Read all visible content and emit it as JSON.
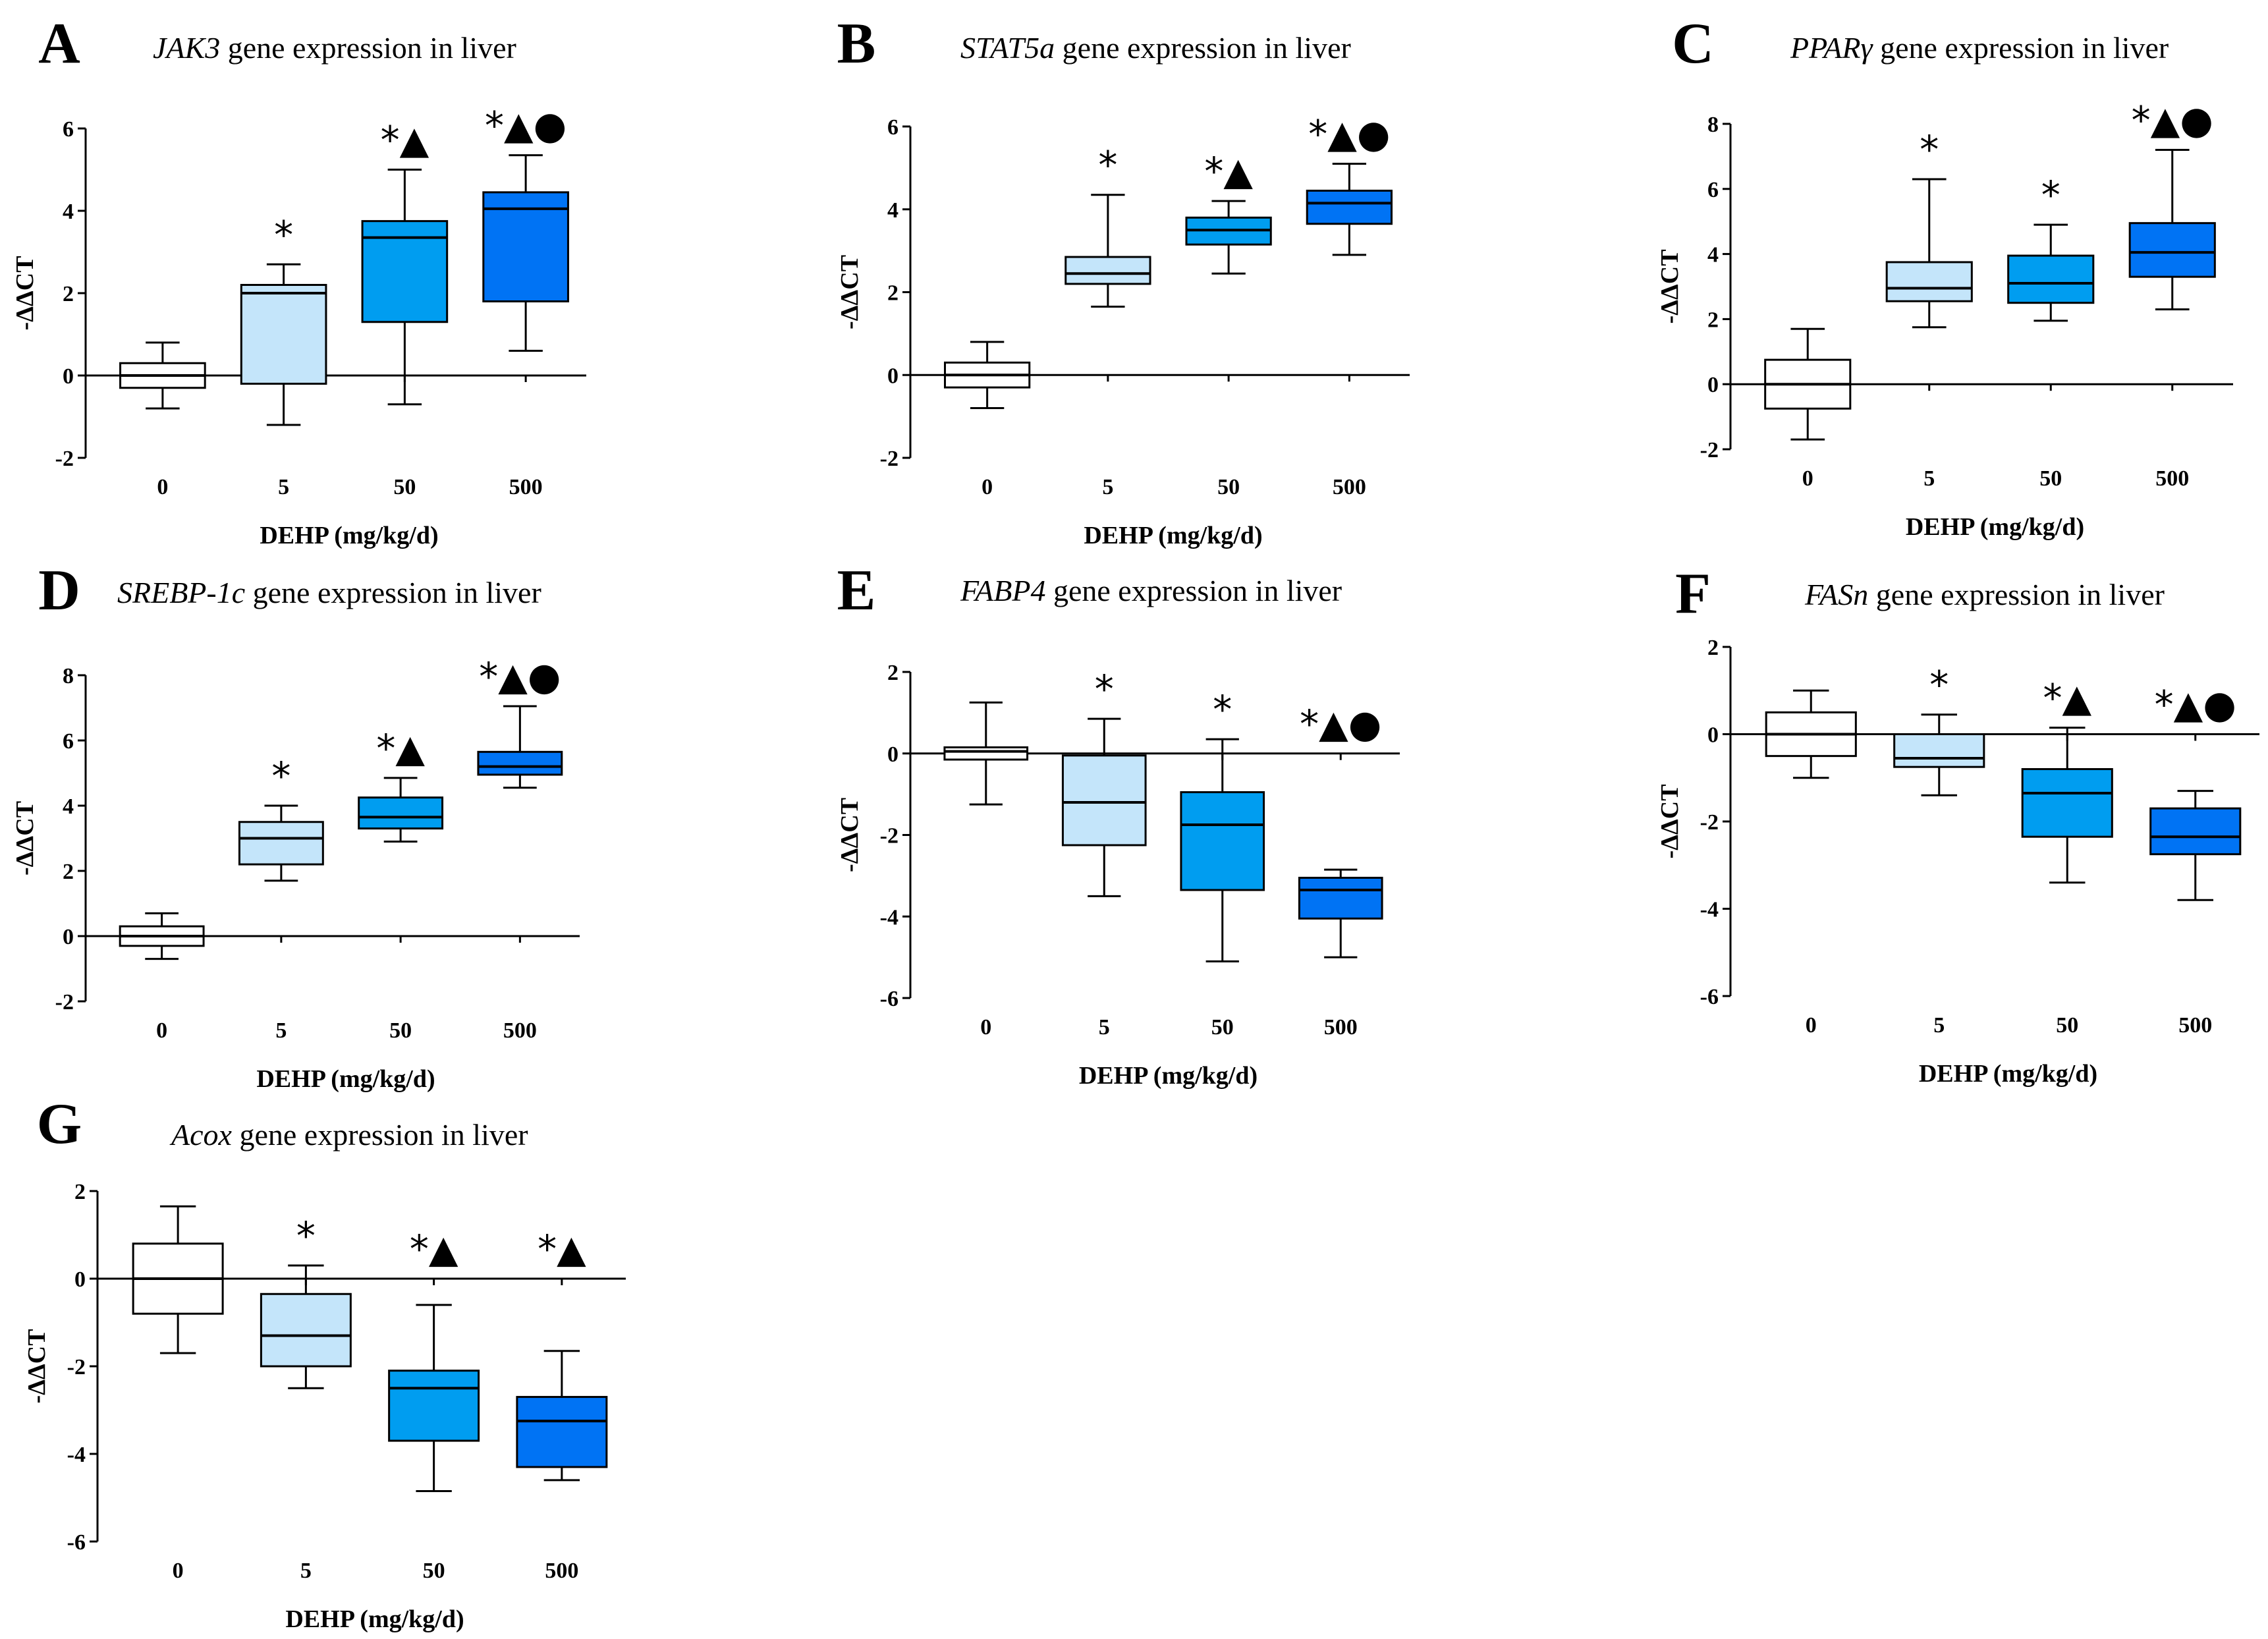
{
  "figure_caption_none": "",
  "chart_data": [
    {
      "type": "box",
      "letter": "A",
      "gene": "JAK3",
      "title_suffix": " gene expression in liver",
      "ylabel": "-ΔΔCT",
      "xlabel": "DEHP (mg/kg/d)",
      "categories": [
        "0",
        "5",
        "50",
        "500"
      ],
      "ylim": [
        -2,
        6
      ],
      "yticks": [
        "-2",
        "0",
        "2",
        "4",
        "6"
      ],
      "boxes": [
        {
          "min": -0.8,
          "q1": -0.3,
          "median": 0.0,
          "q3": 0.3,
          "max": 0.8
        },
        {
          "min": -1.2,
          "q1": -0.2,
          "median": 2.0,
          "q3": 2.2,
          "max": 2.7
        },
        {
          "min": -0.7,
          "q1": 1.3,
          "median": 3.35,
          "q3": 3.75,
          "max": 5.0
        },
        {
          "min": 0.6,
          "q1": 1.8,
          "median": 4.05,
          "q3": 4.45,
          "max": 5.35
        }
      ],
      "significance": [
        "",
        "*",
        "*▲",
        "*▲●"
      ],
      "colors": [
        "#ffffff",
        "#c4e5fa",
        "#009df0",
        "#0073f4"
      ]
    },
    {
      "type": "box",
      "letter": "B",
      "gene": "STAT5a",
      "title_suffix": " gene expression in liver",
      "ylabel": "-ΔΔCT",
      "xlabel": "DEHP (mg/kg/d)",
      "categories": [
        "0",
        "5",
        "50",
        "500"
      ],
      "ylim": [
        -2,
        6
      ],
      "yticks": [
        "-2",
        "0",
        "2",
        "4",
        "6"
      ],
      "boxes": [
        {
          "min": -0.8,
          "q1": -0.3,
          "median": 0.0,
          "q3": 0.3,
          "max": 0.8
        },
        {
          "min": 1.65,
          "q1": 2.2,
          "median": 2.45,
          "q3": 2.85,
          "max": 4.35
        },
        {
          "min": 2.45,
          "q1": 3.15,
          "median": 3.5,
          "q3": 3.8,
          "max": 4.2
        },
        {
          "min": 2.9,
          "q1": 3.65,
          "median": 4.15,
          "q3": 4.45,
          "max": 5.1
        }
      ],
      "significance": [
        "",
        "*",
        "*▲",
        "*▲●"
      ],
      "colors": [
        "#ffffff",
        "#c4e5fa",
        "#009df0",
        "#0073f4"
      ]
    },
    {
      "type": "box",
      "letter": "C",
      "gene": "PPARγ",
      "title_suffix": " gene expression in liver",
      "ylabel": "-ΔΔCT",
      "xlabel": "DEHP (mg/kg/d)",
      "categories": [
        "0",
        "5",
        "50",
        "500"
      ],
      "ylim": [
        -2,
        8
      ],
      "yticks": [
        "-2",
        "0",
        "2",
        "4",
        "6",
        "8"
      ],
      "boxes": [
        {
          "min": -1.7,
          "q1": -0.75,
          "median": 0.0,
          "q3": 0.75,
          "max": 1.7
        },
        {
          "min": 1.75,
          "q1": 2.55,
          "median": 2.95,
          "q3": 3.75,
          "max": 6.3
        },
        {
          "min": 1.95,
          "q1": 2.5,
          "median": 3.1,
          "q3": 3.95,
          "max": 4.9
        },
        {
          "min": 2.3,
          "q1": 3.3,
          "median": 4.05,
          "q3": 4.95,
          "max": 7.2
        }
      ],
      "significance": [
        "",
        "*",
        "*",
        "*▲●"
      ],
      "colors": [
        "#ffffff",
        "#c4e5fa",
        "#009df0",
        "#0073f4"
      ]
    },
    {
      "type": "box",
      "letter": "D",
      "gene": "SREBP-1c",
      "title_suffix": " gene expression in liver",
      "ylabel": "-ΔΔCT",
      "xlabel": "DEHP (mg/kg/d)",
      "categories": [
        "0",
        "5",
        "50",
        "500"
      ],
      "ylim": [
        -2,
        8
      ],
      "yticks": [
        "-2",
        "0",
        "2",
        "4",
        "6",
        "8"
      ],
      "boxes": [
        {
          "min": -0.7,
          "q1": -0.3,
          "median": 0.0,
          "q3": 0.3,
          "max": 0.7
        },
        {
          "min": 1.7,
          "q1": 2.2,
          "median": 3.0,
          "q3": 3.5,
          "max": 4.0
        },
        {
          "min": 2.9,
          "q1": 3.3,
          "median": 3.65,
          "q3": 4.25,
          "max": 4.85
        },
        {
          "min": 4.55,
          "q1": 4.95,
          "median": 5.2,
          "q3": 5.65,
          "max": 7.05
        }
      ],
      "significance": [
        "",
        "*",
        "*▲",
        "*▲●"
      ],
      "colors": [
        "#ffffff",
        "#c4e5fa",
        "#009df0",
        "#0073f4"
      ]
    },
    {
      "type": "box",
      "letter": "E",
      "gene": "FABP4",
      "title_suffix": " gene expression in liver",
      "ylabel": "-ΔΔCT",
      "xlabel": "DEHP (mg/kg/d)",
      "categories": [
        "0",
        "5",
        "50",
        "500"
      ],
      "ylim": [
        -6,
        2
      ],
      "yticks": [
        "-6",
        "-4",
        "-2",
        "0",
        "2"
      ],
      "boxes": [
        {
          "min": -1.25,
          "q1": -0.15,
          "median": 0.05,
          "q3": 0.15,
          "max": 1.25
        },
        {
          "min": -3.5,
          "q1": -2.25,
          "median": -1.2,
          "q3": -0.05,
          "max": 0.85
        },
        {
          "min": -5.1,
          "q1": -3.35,
          "median": -1.75,
          "q3": -0.95,
          "max": 0.35
        },
        {
          "min": -5.0,
          "q1": -4.05,
          "median": -3.35,
          "q3": -3.05,
          "max": -2.85
        }
      ],
      "significance": [
        "",
        "*",
        "*",
        "*▲●"
      ],
      "colors": [
        "#ffffff",
        "#c4e5fa",
        "#009df0",
        "#0073f4"
      ]
    },
    {
      "type": "box",
      "letter": "F",
      "gene": "FASn",
      "title_suffix": " gene expression in liver",
      "ylabel": "-ΔΔCT",
      "xlabel": "DEHP (mg/kg/d)",
      "categories": [
        "0",
        "5",
        "50",
        "500"
      ],
      "ylim": [
        -6,
        2
      ],
      "yticks": [
        "-6",
        "-4",
        "-2",
        "0",
        "2"
      ],
      "boxes": [
        {
          "min": -1.0,
          "q1": -0.5,
          "median": 0.0,
          "q3": 0.5,
          "max": 1.0
        },
        {
          "min": -1.4,
          "q1": -0.75,
          "median": -0.55,
          "q3": 0.0,
          "max": 0.45
        },
        {
          "min": -3.4,
          "q1": -2.35,
          "median": -1.35,
          "q3": -0.8,
          "max": 0.15
        },
        {
          "min": -3.8,
          "q1": -2.75,
          "median": -2.35,
          "q3": -1.7,
          "max": -1.3
        }
      ],
      "significance": [
        "",
        "*",
        "*▲",
        "*▲●"
      ],
      "colors": [
        "#ffffff",
        "#c4e5fa",
        "#009df0",
        "#0073f4"
      ]
    },
    {
      "type": "box",
      "letter": "G",
      "gene": "Acox",
      "title_suffix": " gene expression in liver",
      "ylabel": "-ΔΔCT",
      "xlabel": "DEHP (mg/kg/d)",
      "categories": [
        "0",
        "5",
        "50",
        "500"
      ],
      "ylim": [
        -6,
        2
      ],
      "yticks": [
        "-6",
        "-4",
        "-2",
        "0",
        "2"
      ],
      "boxes": [
        {
          "min": -1.7,
          "q1": -0.8,
          "median": 0.0,
          "q3": 0.8,
          "max": 1.65
        },
        {
          "min": -2.5,
          "q1": -2.0,
          "median": -1.3,
          "q3": -0.35,
          "max": 0.3
        },
        {
          "min": -4.85,
          "q1": -3.7,
          "median": -2.5,
          "q3": -2.1,
          "max": -0.6
        },
        {
          "min": -4.6,
          "q1": -4.3,
          "median": -3.25,
          "q3": -2.7,
          "max": -1.65
        }
      ],
      "significance": [
        "",
        "*",
        "*▲",
        "*▲"
      ],
      "colors": [
        "#ffffff",
        "#c4e5fa",
        "#009df0",
        "#0073f4"
      ]
    }
  ]
}
